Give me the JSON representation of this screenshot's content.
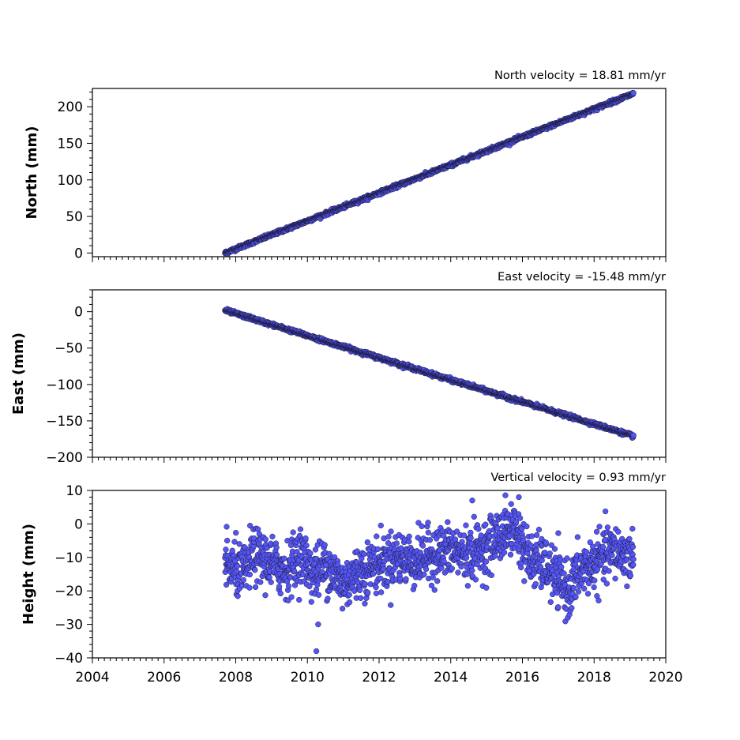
{
  "chart_data": [
    {
      "type": "scatter",
      "panel": "north",
      "ylabel": "North (mm)",
      "velocity_label": "North velocity = 18.81 mm/yr",
      "velocity_mm_per_yr": 18.81,
      "xlim": [
        2004,
        2020
      ],
      "ylim": [
        -5,
        225
      ],
      "yticks": [
        0,
        50,
        100,
        150,
        200
      ],
      "series": [
        {
          "x_start": 2007.7,
          "x_end": 2019.1,
          "y_start": 0,
          "y_end": 218,
          "noise_mm": 1.2,
          "count": 1500
        }
      ]
    },
    {
      "type": "scatter",
      "panel": "east",
      "ylabel": "East (mm)",
      "velocity_label": "East velocity = -15.48 mm/yr",
      "velocity_mm_per_yr": -15.48,
      "xlim": [
        2004,
        2020
      ],
      "ylim": [
        -200,
        30
      ],
      "yticks": [
        0,
        -50,
        -100,
        -150,
        -200
      ],
      "series": [
        {
          "x_start": 2007.7,
          "x_end": 2019.1,
          "y_start": 2,
          "y_end": -171,
          "noise_mm": 1.2,
          "count": 1500
        }
      ]
    },
    {
      "type": "scatter",
      "panel": "height",
      "ylabel": "Height (mm)",
      "velocity_label": "Vertical velocity = 0.93 mm/yr",
      "velocity_mm_per_yr": 0.93,
      "xlim": [
        2004,
        2020
      ],
      "ylim": [
        -40,
        10
      ],
      "yticks": [
        10,
        0,
        -10,
        -20,
        -30,
        -40
      ],
      "series": [
        {
          "x_start": 2007.7,
          "x_end": 2019.1,
          "count": 1500,
          "noise_mm": 4,
          "trend": [
            [
              2007.7,
              -12
            ],
            [
              2008.2,
              -15
            ],
            [
              2008.5,
              -9
            ],
            [
              2009.0,
              -12
            ],
            [
              2009.4,
              -14
            ],
            [
              2009.8,
              -9
            ],
            [
              2010.2,
              -15
            ],
            [
              2010.5,
              -12
            ],
            [
              2011.0,
              -18
            ],
            [
              2011.5,
              -14
            ],
            [
              2012.0,
              -12
            ],
            [
              2012.5,
              -10
            ],
            [
              2013.0,
              -11
            ],
            [
              2013.5,
              -9
            ],
            [
              2014.0,
              -8
            ],
            [
              2014.5,
              -9
            ],
            [
              2015.0,
              -7
            ],
            [
              2015.4,
              -3
            ],
            [
              2015.8,
              -1
            ],
            [
              2016.2,
              -11
            ],
            [
              2016.6,
              -12
            ],
            [
              2017.0,
              -17
            ],
            [
              2017.3,
              -20
            ],
            [
              2017.6,
              -14
            ],
            [
              2018.0,
              -12
            ],
            [
              2018.5,
              -8
            ],
            [
              2019.1,
              -10
            ]
          ],
          "outliers": [
            [
              2010.25,
              -38
            ],
            [
              2010.3,
              -30
            ],
            [
              2015.9,
              8
            ],
            [
              2014.6,
              7
            ]
          ]
        }
      ]
    }
  ],
  "x_tick_labels": [
    "2004",
    "2006",
    "2008",
    "2010",
    "2012",
    "2014",
    "2016",
    "2018",
    "2020"
  ],
  "colors": {
    "marker_fill": "#5555f5",
    "marker_edge": "#1a1a3a"
  }
}
